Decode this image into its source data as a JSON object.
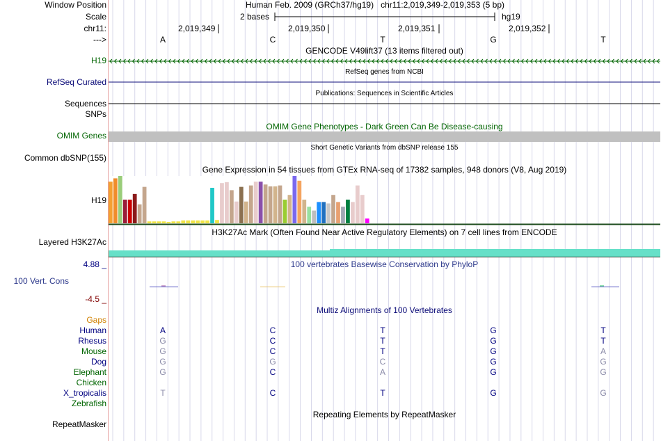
{
  "header": {
    "window_position_label": "Window Position",
    "scale_label": "Scale",
    "chrom_label": "chr11:",
    "strand_label": "--->",
    "assembly_text": "Human Feb. 2009 (GRCh37/hg19)   chr11:2,019,349-2,019,353 (5 bp)",
    "scale_text": "2 bases",
    "scale_db": "hg19",
    "positions": [
      "2,019,349",
      "2,019,350",
      "2,019,351",
      "2,019,352"
    ],
    "bases": [
      "A",
      "C",
      "T",
      "G",
      "T"
    ]
  },
  "tracks": {
    "gencode": {
      "title": "GENCODE V49lift37 (13 items filtered out)",
      "label": "H19",
      "color": "#006400"
    },
    "refseq": {
      "title": "RefSeq genes from NCBI",
      "label": "RefSeq Curated",
      "color": "#0c0c78"
    },
    "publications": {
      "title": "Publications: Sequences in Scientific Articles",
      "label1": "Sequences",
      "label2": "SNPs"
    },
    "omim": {
      "title": "OMIM Gene Phenotypes - Dark Green Can Be Disease-causing",
      "label": "OMIM Genes",
      "color": "#006400"
    },
    "dbsnp": {
      "title": "Short Genetic Variants from dbSNP release 155",
      "label": "Common dbSNP(155)"
    },
    "gtex": {
      "title": "Gene Expression in 54 tissues from GTEx RNA-seq of 17382 samples, 948 donors (V8, Aug 2019)",
      "label": "H19",
      "expression": [
        0.88,
        0.95,
        1.0,
        0.5,
        0.5,
        0.62,
        0.4,
        0.77,
        0.04,
        0.04,
        0.04,
        0.04,
        0.03,
        0.04,
        0.04,
        0.06,
        0.06,
        0.06,
        0.06,
        0.06,
        0.06,
        0.75,
        0.07,
        0.85,
        0.87,
        0.7,
        0.46,
        0.77,
        0.46,
        0.8,
        0.88,
        0.88,
        0.82,
        0.78,
        0.78,
        0.8,
        0.5,
        0.6,
        1.0,
        0.9,
        0.5,
        0.35,
        0.27,
        0.45,
        0.45,
        0.42,
        0.6,
        0.45,
        0.35,
        0.5,
        0.45,
        0.8,
        0.6,
        0.1
      ],
      "colors": [
        "#f4a031",
        "#f08c2a",
        "#9acd7a",
        "#9b1d3a",
        "#cc0000",
        "#8b1a1a",
        "#c4a68d",
        "#c4a68d",
        "#f0e446",
        "#f0e446",
        "#f0e446",
        "#f0e446",
        "#f0e446",
        "#f0e446",
        "#f0e446",
        "#f0e446",
        "#f0e446",
        "#f0e446",
        "#f0e446",
        "#f0e446",
        "#f0e446",
        "#1fc8c8",
        "#f0e446",
        "#e8cccc",
        "#e8cccc",
        "#c4a68d",
        "#e8cccc",
        "#8b7050",
        "#d2b48c",
        "#c4a68d",
        "#e8cccc",
        "#8a4faa",
        "#c4a68d",
        "#c4a68d",
        "#d2b48c",
        "#c4a68d",
        "#9acd32",
        "#d2b48c",
        "#7b68ee",
        "#f4a460",
        "#d2b48c",
        "#98e0a0",
        "#bebebe",
        "#1e90ff",
        "#2070c0",
        "#c8c8c8",
        "#c4a68d",
        "#e8a070",
        "#a0a8b4",
        "#008040",
        "#e8cccc",
        "#e8cccc",
        "#e8cccc",
        "#ff00ff"
      ]
    },
    "h3k27ac": {
      "title": "H3K27Ac Mark (Often Found Near Active Regulatory Elements) on 7 cell lines from ENCODE",
      "label": "Layered H3K27Ac"
    },
    "phylop": {
      "title": "100 vertebrates Basewise Conservation by PhyloP",
      "label": "100 Vert. Cons",
      "max": "4.88 _",
      "min": "-4.5 _"
    },
    "multiz": {
      "title": "Multiz Alignments of 100 Vertebrates",
      "rows": [
        {
          "name": "Gaps",
          "color": "#d08000",
          "bases": [
            "",
            "",
            "",
            "",
            ""
          ]
        },
        {
          "name": "Human",
          "color": "#000080",
          "bases": [
            "A",
            "C",
            "T",
            "G",
            "T"
          ]
        },
        {
          "name": "Rhesus",
          "color": "#000080",
          "bases": [
            "G",
            "C",
            "T",
            "G",
            "T"
          ]
        },
        {
          "name": "Mouse",
          "color": "#006400",
          "bases": [
            "G",
            "C",
            "T",
            "G",
            "A"
          ]
        },
        {
          "name": "Dog",
          "color": "#000080",
          "bases": [
            "G",
            "G",
            "C",
            "G",
            "G"
          ]
        },
        {
          "name": "Elephant",
          "color": "#006400",
          "bases": [
            "G",
            "C",
            "A",
            "G",
            "G"
          ]
        },
        {
          "name": "Chicken",
          "color": "#006400",
          "bases": [
            "",
            "",
            "",
            "",
            ""
          ]
        },
        {
          "name": "X_tropicalis",
          "color": "#000080",
          "bases": [
            "T",
            "C",
            "T",
            "G",
            "G"
          ]
        },
        {
          "name": "Zebrafish",
          "color": "#006400",
          "bases": [
            "",
            "",
            "",
            "",
            ""
          ]
        }
      ]
    },
    "repeatmasker": {
      "title": "Repeating Elements by RepeatMasker",
      "label": "RepeatMasker"
    }
  },
  "colors": {
    "gridline": "#d8d8ea",
    "phylop_max": "#000080",
    "phylop_min": "#800000",
    "h3k27ac_fill": "#66e0c8",
    "omim_bar": "#c0c0c0",
    "aligned_match": "#000080",
    "aligned_mismatch": "#8a8aa8"
  }
}
